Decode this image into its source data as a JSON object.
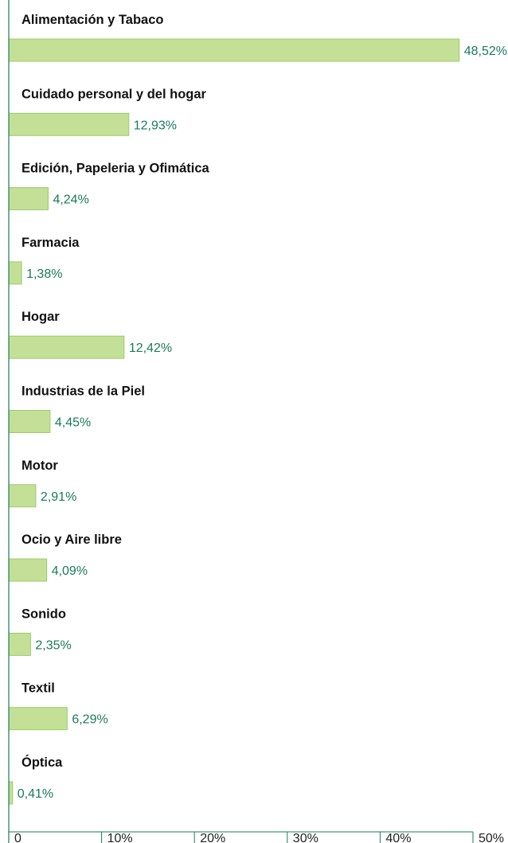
{
  "chart_data": {
    "type": "bar",
    "orientation": "horizontal",
    "categories": [
      "Alimentación y Tabaco",
      "Cuidado personal y del hogar",
      "Edición, Papeleria y Ofimática",
      "Farmacia",
      "Hogar",
      "Industrias de la Piel",
      "Motor",
      "Ocio y Aire libre",
      "Sonido",
      "Textil",
      "Óptica"
    ],
    "values": [
      48.52,
      12.93,
      4.24,
      1.38,
      12.42,
      4.45,
      2.91,
      4.09,
      2.35,
      6.29,
      0.41
    ],
    "value_labels": [
      "48,52%",
      "12,93%",
      "4,24%",
      "1,38%",
      "12,42%",
      "4,45%",
      "2,91%",
      "4,09%",
      "2,35%",
      "6,29%",
      "0,41%"
    ],
    "xlim": [
      0,
      50
    ],
    "x_ticks": [
      0,
      10,
      20,
      30,
      40,
      50
    ],
    "x_tick_labels": [
      "0",
      "10%",
      "20%",
      "30%",
      "40%",
      "50%"
    ],
    "grid": false,
    "title": "",
    "xlabel": "",
    "ylabel": ""
  },
  "colors": {
    "bar_fill": "#c3e096",
    "bar_stroke": "#9ccb6c",
    "axis": "#1a7a5a",
    "value_text": "#1a7a5a",
    "label_text": "#111111"
  }
}
